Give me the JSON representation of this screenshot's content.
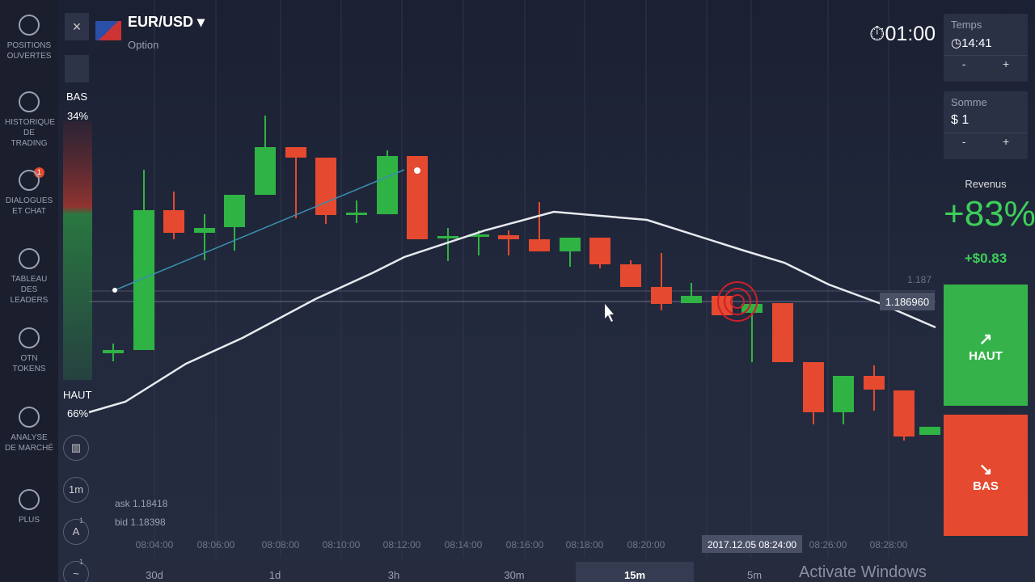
{
  "sidebar": {
    "items": [
      "POSITIONS OUVERTES",
      "HISTORIQUE DE TRADING",
      "DIALOGUES ET CHAT",
      "TABLEAU DES LEADERS",
      "OTN TOKENS",
      "ANALYSE DE MARCHÉ",
      "PLUS"
    ],
    "badge": "1"
  },
  "header": {
    "asset": "EUR/USD",
    "subtitle": "Option",
    "timer": "01:00"
  },
  "sentiment": {
    "bas_label": "BAS",
    "bas_pct": "34%",
    "haut_label": "HAUT",
    "haut_pct": "66%"
  },
  "tools": {
    "timeframe": "1m",
    "badges": [
      "1",
      "1"
    ]
  },
  "quotes": {
    "ask": "ask 1.18418",
    "bid": "bid 1.18398"
  },
  "panel": {
    "time_label": "Temps",
    "time_value": "14:41",
    "amount_label": "Somme",
    "amount_value": "$ 1",
    "minus": "-",
    "plus": "+",
    "revenue_label": "Revenus",
    "revenue_pct": "+83%",
    "revenue_amount": "+$0.83",
    "up_button": "HAUT",
    "down_button": "BAS"
  },
  "chart": {
    "price_level": "1.187",
    "current_price": "1.186960",
    "time_labels": [
      "08:04:00",
      "08:06:00",
      "08:08:00",
      "08:10:00",
      "08:12:00",
      "08:14:00",
      "08:16:00",
      "08:18:00",
      "08:20:00",
      "08:26:00",
      "08:28:00"
    ],
    "cursor_time": "2017.12.05 08:24:00"
  },
  "bottom_bar": {
    "periods": [
      "30d",
      "1d",
      "3h",
      "30m",
      "15m",
      "5m"
    ],
    "watermark": "Activate Windows"
  }
}
